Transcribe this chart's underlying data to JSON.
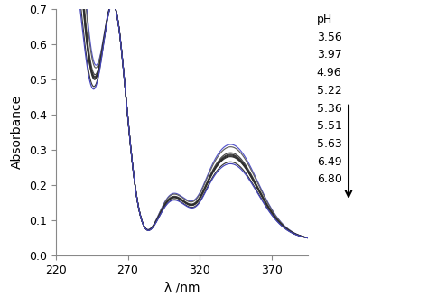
{
  "ph_values": [
    3.56,
    3.97,
    4.96,
    5.22,
    5.36,
    5.51,
    5.63,
    6.49,
    6.8
  ],
  "xlim": [
    220,
    395
  ],
  "ylim": [
    0.0,
    0.7
  ],
  "xlabel": "λ /nm",
  "ylabel": "Absorbance",
  "xticks": [
    220,
    270,
    320,
    370
  ],
  "yticks": [
    0.0,
    0.1,
    0.2,
    0.3,
    0.4,
    0.5,
    0.6,
    0.7
  ],
  "line_colors_order": [
    "#5555cc",
    "#606060",
    "#484848",
    "#383838",
    "#303030",
    "#282828",
    "#303030",
    "#383838",
    "#4444bb"
  ],
  "background_color": "#ffffff",
  "ph_labels": [
    "3.56",
    "3.97",
    "4.96",
    "5.22",
    "5.36",
    "5.51",
    "5.63",
    "6.49",
    "6.80"
  ]
}
